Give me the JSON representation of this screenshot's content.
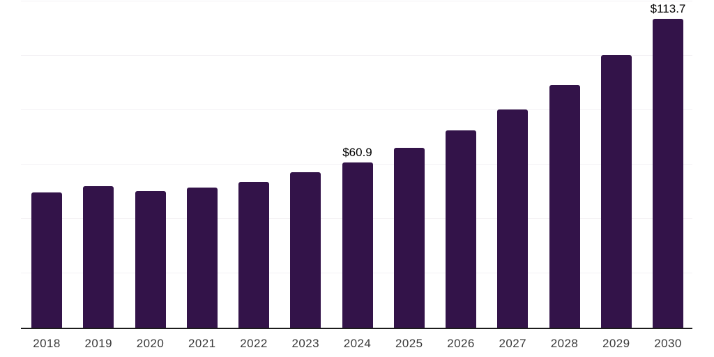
{
  "chart": {
    "background_color": "#ffffff",
    "bar_color": "#331349",
    "axis_color": "#1c1c1c",
    "gridline_color": "#f3f1f4",
    "tick_label_color": "#3a3a3a",
    "data_label_color": "#000000"
  },
  "chart_data": {
    "type": "bar",
    "title": "",
    "xlabel": "",
    "ylabel": "",
    "categories": [
      "2018",
      "2019",
      "2020",
      "2021",
      "2022",
      "2023",
      "2024",
      "2025",
      "2026",
      "2027",
      "2028",
      "2029",
      "2030"
    ],
    "values": [
      49.8,
      52.1,
      50.2,
      51.5,
      53.6,
      57.2,
      60.9,
      66.2,
      72.6,
      80.2,
      89.3,
      100.2,
      113.7
    ],
    "data_labels": {
      "2024": "$60.9",
      "2030": "$113.7"
    },
    "ylim": [
      0,
      120
    ],
    "grid_interval": 20,
    "grid": "horizontal",
    "y_tick_labels_visible": false,
    "legend": "none"
  }
}
